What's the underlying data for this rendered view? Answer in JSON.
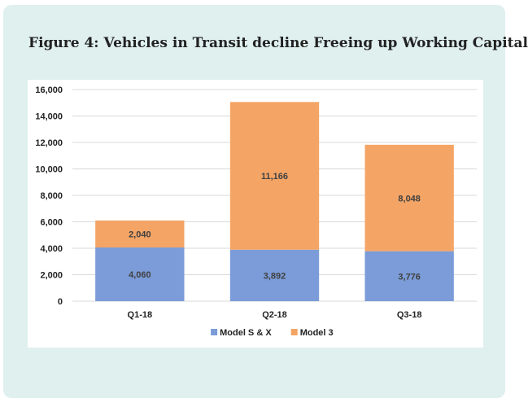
{
  "figure": {
    "title": "Figure 4: Vehicles in Transit decline Freeing up Working Capital"
  },
  "colors": {
    "card_background": "#dff0ef",
    "model_sx": "#7b9cd8",
    "model_3": "#f4a566",
    "grid": "#d9d9d9"
  },
  "chart_data": {
    "type": "bar",
    "stacked": true,
    "categories": [
      "Q1-18",
      "Q2-18",
      "Q3-18"
    ],
    "series": [
      {
        "name": "Model S & X",
        "values": [
          4060,
          3892,
          3776
        ]
      },
      {
        "name": "Model 3",
        "values": [
          2040,
          11166,
          8048
        ]
      }
    ],
    "value_labels": [
      [
        "4,060",
        "3,892",
        "3,776"
      ],
      [
        "2,040",
        "11,166",
        "8,048"
      ]
    ],
    "ylim": [
      0,
      16000
    ],
    "yticks": [
      0,
      2000,
      4000,
      6000,
      8000,
      10000,
      12000,
      14000,
      16000
    ],
    "ytick_labels": [
      "0",
      "2,000",
      "4,000",
      "6,000",
      "8,000",
      "10,000",
      "12,000",
      "14,000",
      "16,000"
    ],
    "grid": true,
    "legend_position": "bottom"
  }
}
